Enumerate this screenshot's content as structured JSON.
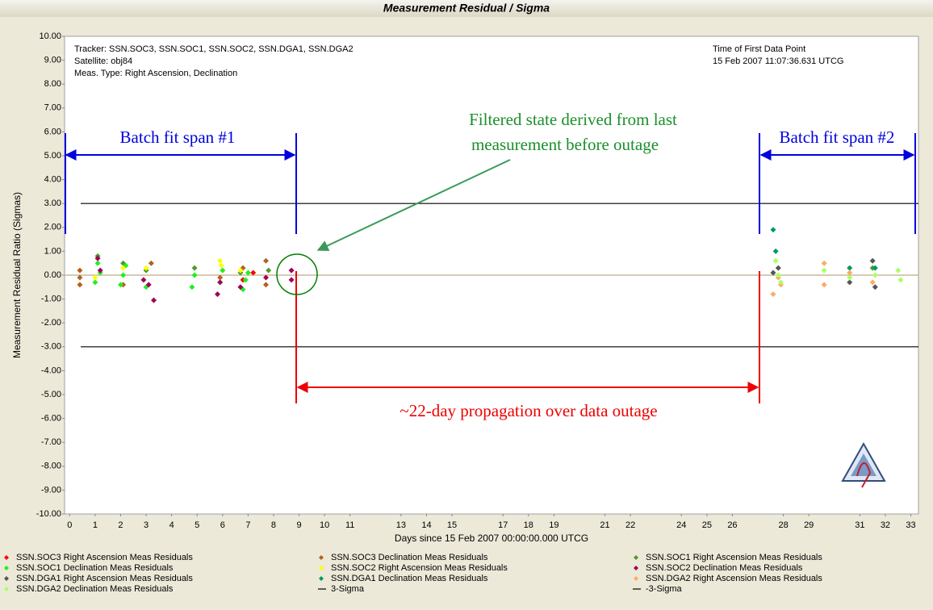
{
  "chart_data": {
    "type": "scatter",
    "title": "Measurement Residual / Sigma",
    "header_left": [
      "Tracker: SSN.SOC3, SSN.SOC1, SSN.SOC2, SSN.DGA1, SSN.DGA2",
      "Satellite: obj84",
      "Meas. Type: Right Ascension, Declination"
    ],
    "header_right": [
      "Time of First Data Point",
      "15 Feb 2007 11:07:36.631 UTCG"
    ],
    "xlabel": "Days since 15 Feb 2007 00:00:00.000 UTCG",
    "ylabel": "Measurement Residual Ratio (Sigmas)",
    "xlim": [
      -0.2,
      33.3
    ],
    "xticks": [
      0,
      1,
      2,
      3,
      4,
      5,
      6,
      7,
      8,
      9,
      10,
      11,
      13,
      14,
      15,
      17,
      18,
      19,
      21,
      22,
      24,
      25,
      26,
      28,
      29,
      31,
      32,
      33
    ],
    "ylim": [
      -10,
      10
    ],
    "yticks": [
      {
        "value": 10,
        "label": "10.00"
      },
      {
        "value": 9,
        "label": "9.00"
      },
      {
        "value": 8,
        "label": "8.00"
      },
      {
        "value": 7,
        "label": "7.00"
      },
      {
        "value": 6,
        "label": "6.00"
      },
      {
        "value": 5,
        "label": "5.00"
      },
      {
        "value": 4,
        "label": "4.00"
      },
      {
        "value": 3,
        "label": "3.00"
      },
      {
        "value": 2,
        "label": "2.00"
      },
      {
        "value": 1,
        "label": "1.00"
      },
      {
        "value": 0,
        "label": "0.00"
      },
      {
        "value": -1,
        "label": "-1.00"
      },
      {
        "value": -2,
        "label": "-2.00"
      },
      {
        "value": -3,
        "label": "-3.00"
      },
      {
        "value": -4,
        "label": "-4.00"
      },
      {
        "value": -5,
        "label": "-5.00"
      },
      {
        "value": -6,
        "label": "-6.00"
      },
      {
        "value": -7,
        "label": "-7.00"
      },
      {
        "value": -8,
        "label": "-8.00"
      },
      {
        "value": -9,
        "label": "-9.00"
      },
      {
        "value": -10,
        "label": "-10.00"
      }
    ],
    "series": [
      {
        "name": "SSN.SOC3 Right Ascension Meas Residuals",
        "color": "#ff0000",
        "x": [
          6.8,
          7.2
        ],
        "y": [
          -0.2,
          0.1
        ]
      },
      {
        "name": "SSN.SOC3 Declination Meas Residuals",
        "color": "#b5611c",
        "x": [
          0.4,
          0.4,
          0.4,
          2.1,
          3.2,
          5.9,
          6.8,
          7.7,
          7.7
        ],
        "y": [
          0.2,
          -0.1,
          -0.4,
          -0.4,
          0.5,
          -0.1,
          0.3,
          0.6,
          -0.4
        ]
      },
      {
        "name": "SSN.SOC1 Right Ascension Meas Residuals",
        "color": "#4f9a2c",
        "x": [
          1.1,
          2.1,
          3.0,
          4.9,
          6.7,
          7.8,
          31.5
        ],
        "y": [
          0.8,
          0.5,
          0.2,
          0.3,
          0.1,
          0.2,
          0.3
        ]
      },
      {
        "name": "SSN.SOC1 Declination Meas Residuals",
        "color": "#22ee22",
        "x": [
          1.0,
          1.1,
          1.2,
          2.0,
          2.1,
          2.2,
          3.0,
          4.8,
          4.9,
          5.9,
          6.0,
          6.8,
          6.9,
          7.0
        ],
        "y": [
          -0.3,
          0.5,
          0.1,
          -0.4,
          0.0,
          0.4,
          -0.5,
          -0.5,
          0.0,
          -0.3,
          0.2,
          -0.6,
          -0.2,
          0.1
        ]
      },
      {
        "name": "SSN.SOC2 Right Ascension Meas Residuals",
        "color": "#ffff00",
        "x": [
          1.0,
          2.1,
          3.0,
          5.9,
          5.95,
          6.7
        ],
        "y": [
          -0.1,
          0.3,
          0.3,
          0.6,
          0.4,
          0.2
        ]
      },
      {
        "name": "SSN.SOC2 Declination Meas Residuals",
        "color": "#a0005a",
        "x": [
          1.1,
          1.2,
          2.9,
          3.1,
          3.3,
          5.8,
          5.9,
          6.7,
          7.7,
          8.7,
          8.7
        ],
        "y": [
          0.7,
          0.2,
          -0.2,
          -0.4,
          -1.05,
          -0.8,
          -0.3,
          -0.5,
          -0.1,
          0.2,
          -0.2
        ]
      },
      {
        "name": "SSN.DGA1 Right Ascension Meas Residuals",
        "color": "#555555",
        "x": [
          27.6,
          27.8,
          30.6,
          31.5,
          31.6
        ],
        "y": [
          0.1,
          0.3,
          -0.3,
          0.6,
          -0.5
        ]
      },
      {
        "name": "SSN.DGA1 Declination Meas Residuals",
        "color": "#009966",
        "x": [
          27.6,
          27.7,
          30.6,
          31.6
        ],
        "y": [
          1.9,
          1.0,
          0.3,
          0.3
        ]
      },
      {
        "name": "SSN.DGA2 Right Ascension Meas Residuals",
        "color": "#ffaa66",
        "x": [
          27.6,
          27.8,
          27.9,
          29.6,
          29.6,
          30.6,
          31.5
        ],
        "y": [
          -0.8,
          -0.1,
          -0.4,
          0.5,
          -0.4,
          0.1,
          -0.3
        ]
      },
      {
        "name": "SSN.DGA2 Declination Meas Residuals",
        "color": "#aaff66",
        "x": [
          27.7,
          27.8,
          27.9,
          29.6,
          30.6,
          31.6,
          32.5,
          32.6
        ],
        "y": [
          0.6,
          0.0,
          -0.3,
          0.2,
          -0.1,
          0.0,
          0.2,
          -0.2
        ]
      }
    ],
    "reference_lines": [
      {
        "name": "3-Sigma",
        "value": 3,
        "color": "#000000"
      },
      {
        "name": "-3-Sigma",
        "value": -3,
        "color": "#000000"
      }
    ],
    "annotations": {
      "span1": "Batch fit span #1",
      "span2": "Batch fit span #2",
      "filtered": [
        "Filtered state derived from last",
        "measurement before outage"
      ],
      "propagation": "~22-day propagation over data outage"
    }
  }
}
